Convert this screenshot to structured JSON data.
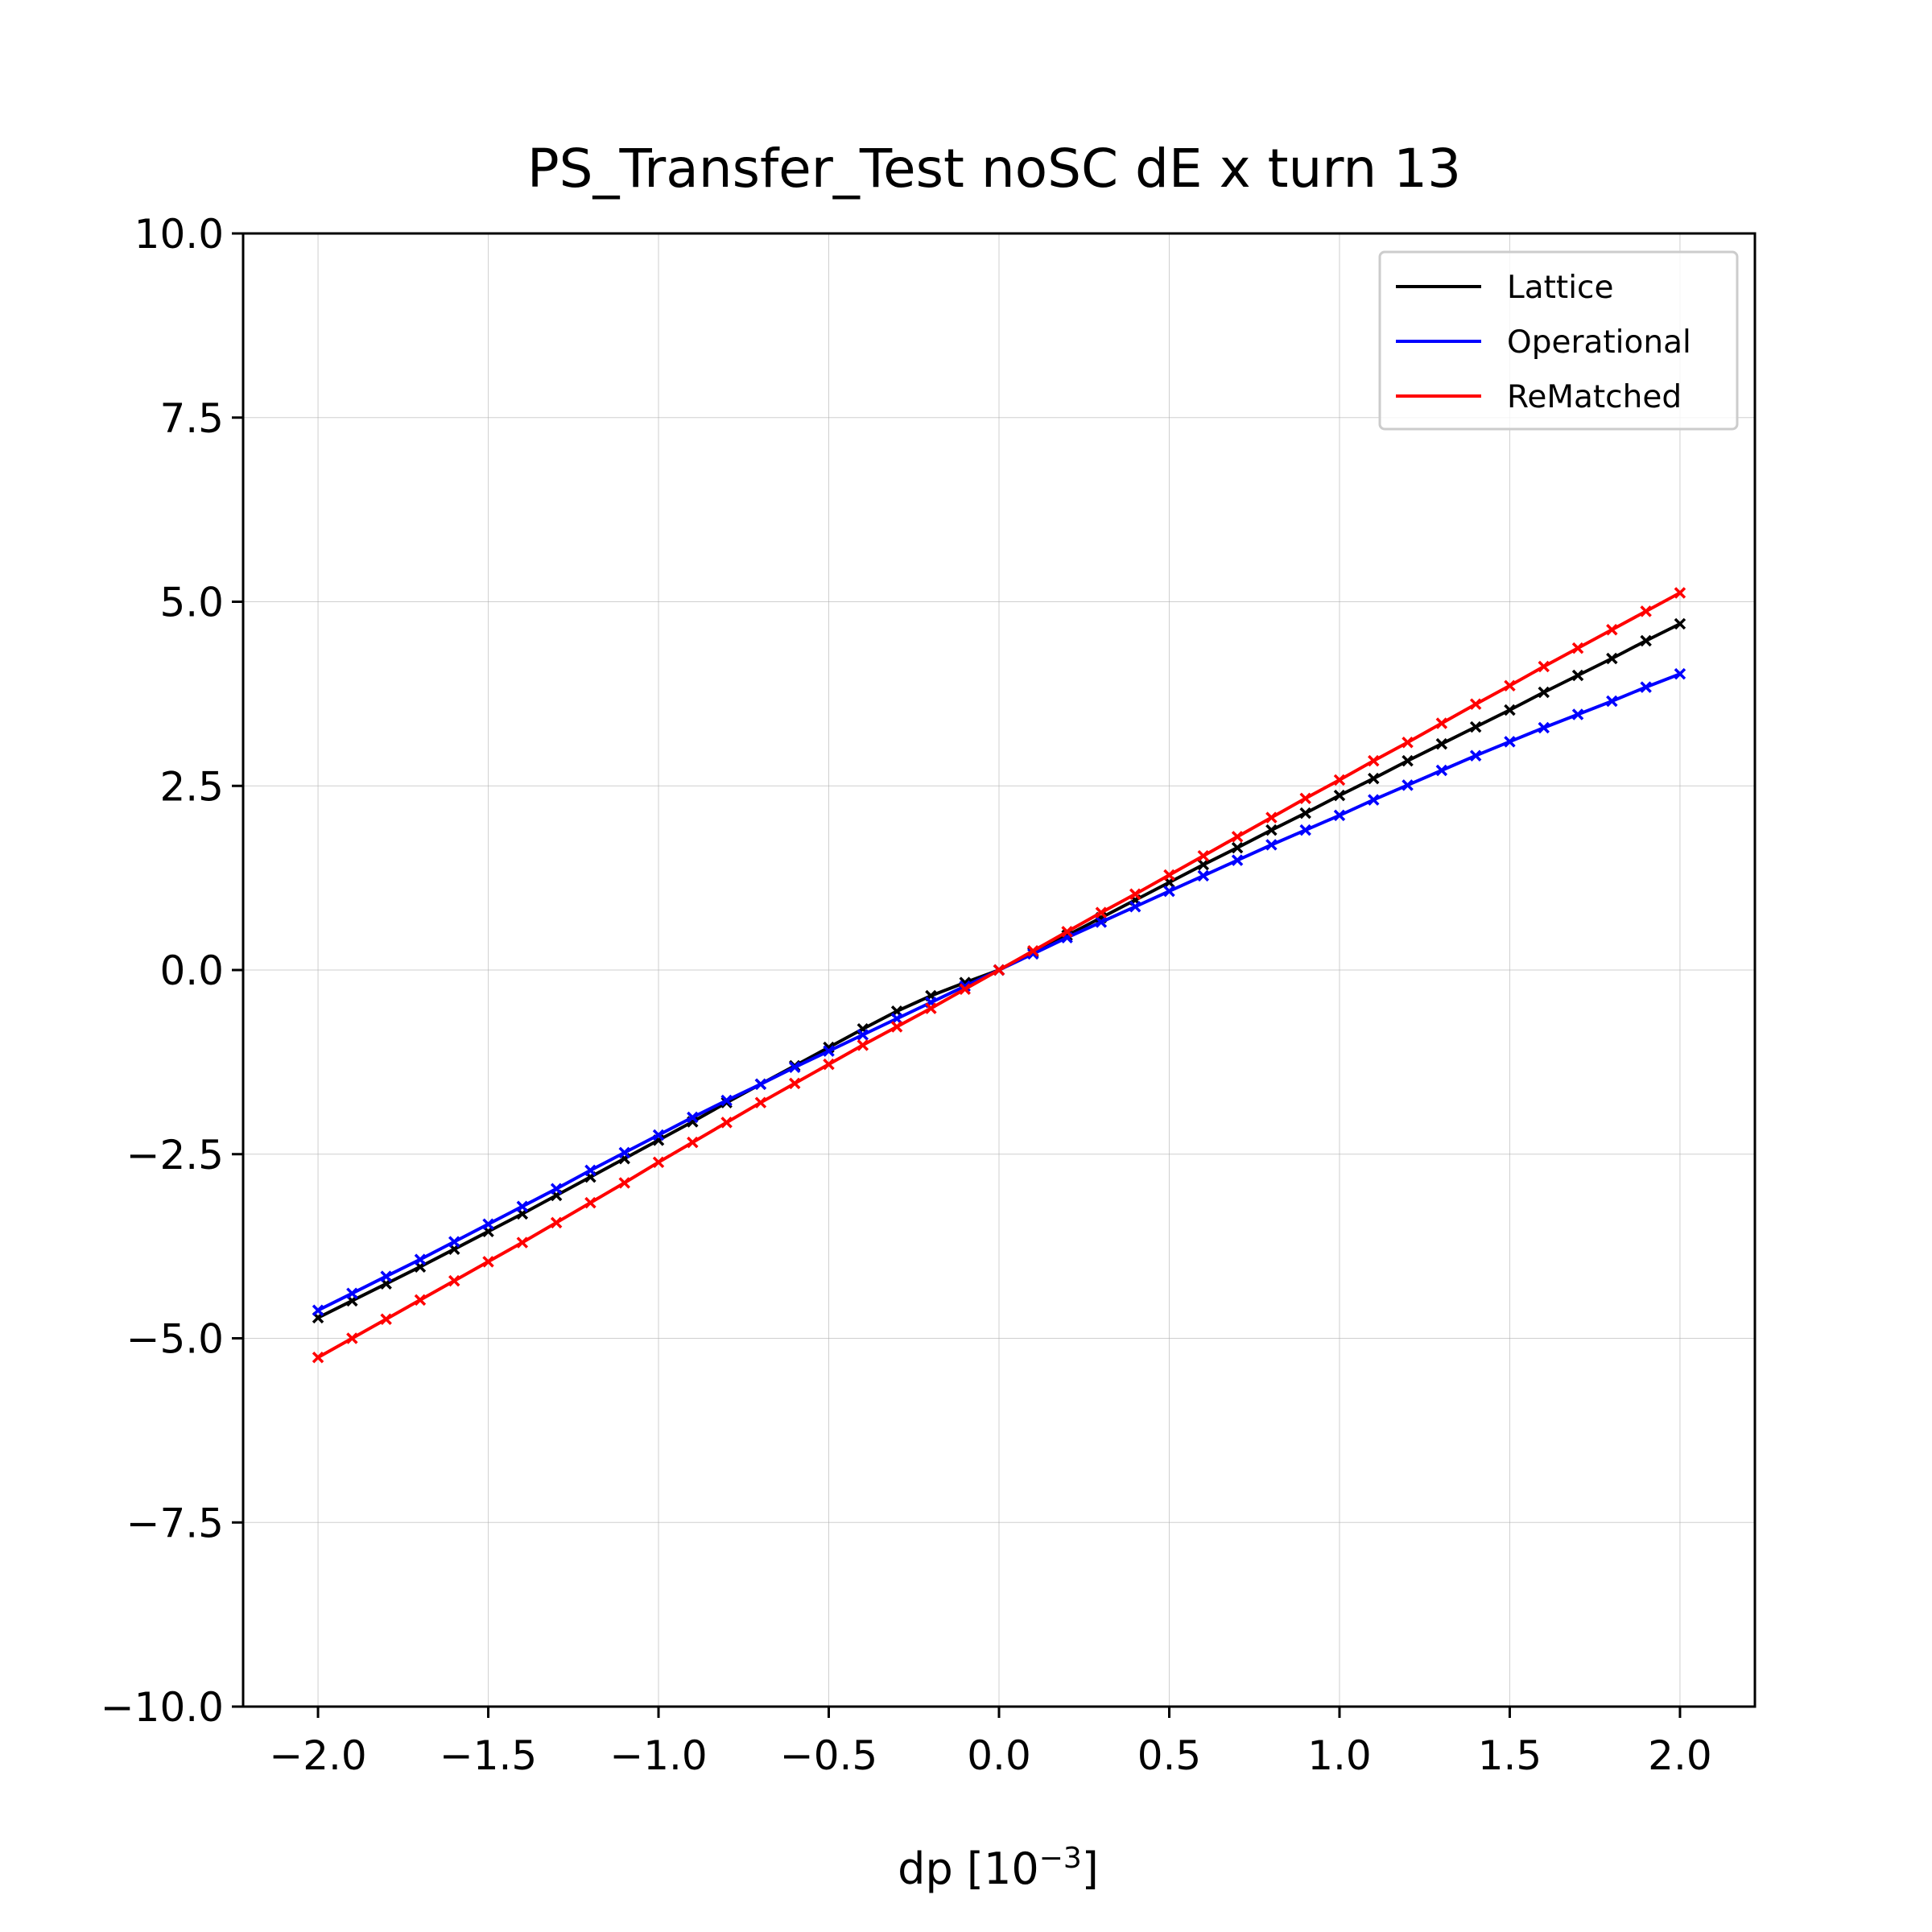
{
  "chart_data": {
    "type": "line",
    "title": "PS_Transfer_Test noSC dE x turn 13",
    "xlabel": "dp [10",
    "xlabel_exponent": "−3",
    "xlabel_suffix": "]",
    "ylabel": "",
    "xlim": [
      -2.22,
      2.22
    ],
    "ylim": [
      -10.0,
      10.0
    ],
    "xticks": [
      -2.0,
      -1.5,
      -1.0,
      -0.5,
      0.0,
      0.5,
      1.0,
      1.5,
      2.0
    ],
    "xtick_labels": [
      "−2.0",
      "−1.5",
      "−1.0",
      "−0.5",
      "0.0",
      "0.5",
      "1.0",
      "1.5",
      "2.0"
    ],
    "yticks": [
      -10.0,
      -7.5,
      -5.0,
      -2.5,
      0.0,
      2.5,
      5.0,
      7.5,
      10.0
    ],
    "ytick_labels": [
      "−10.0",
      "−7.5",
      "−5.0",
      "−2.5",
      "0.0",
      "2.5",
      "5.0",
      "7.5",
      "10.0"
    ],
    "grid": true,
    "legend_position": "top-right",
    "marker": "x",
    "x": [
      -2.0,
      -1.9,
      -1.8,
      -1.7,
      -1.6,
      -1.5,
      -1.4,
      -1.3,
      -1.2,
      -1.1,
      -1.0,
      -0.9,
      -0.8,
      -0.7,
      -0.6,
      -0.5,
      -0.4,
      -0.3,
      -0.2,
      -0.1,
      0.0,
      0.1,
      0.2,
      0.3,
      0.4,
      0.5,
      0.6,
      0.7,
      0.8,
      0.9,
      1.0,
      1.1,
      1.2,
      1.3,
      1.4,
      1.5,
      1.6,
      1.7,
      1.8,
      1.9,
      2.0
    ],
    "series": [
      {
        "name": "Lattice",
        "color": "#000000",
        "values": [
          -4.72,
          -4.49,
          -4.26,
          -4.03,
          -3.79,
          -3.55,
          -3.31,
          -3.06,
          -2.81,
          -2.56,
          -2.31,
          -2.06,
          -1.8,
          -1.55,
          -1.3,
          -1.05,
          -0.8,
          -0.56,
          -0.35,
          -0.17,
          0.0,
          0.24,
          0.47,
          0.71,
          0.95,
          1.19,
          1.43,
          1.66,
          1.9,
          2.13,
          2.37,
          2.6,
          2.84,
          3.07,
          3.3,
          3.53,
          3.77,
          4.0,
          4.23,
          4.47,
          4.7
        ]
      },
      {
        "name": "Operational",
        "color": "#0000ff",
        "values": [
          -4.62,
          -4.39,
          -4.16,
          -3.93,
          -3.69,
          -3.45,
          -3.21,
          -2.97,
          -2.72,
          -2.48,
          -2.24,
          -2.0,
          -1.77,
          -1.55,
          -1.32,
          -1.1,
          -0.88,
          -0.66,
          -0.44,
          -0.22,
          0.0,
          0.22,
          0.44,
          0.65,
          0.86,
          1.07,
          1.28,
          1.49,
          1.7,
          1.9,
          2.1,
          2.31,
          2.51,
          2.71,
          2.91,
          3.1,
          3.29,
          3.47,
          3.65,
          3.84,
          4.02
        ]
      },
      {
        "name": "ReMatched",
        "color": "#ff0000",
        "values": [
          -5.26,
          -5.0,
          -4.74,
          -4.48,
          -4.22,
          -3.96,
          -3.7,
          -3.43,
          -3.16,
          -2.89,
          -2.61,
          -2.34,
          -2.07,
          -1.8,
          -1.54,
          -1.28,
          -1.02,
          -0.77,
          -0.52,
          -0.26,
          0.0,
          0.26,
          0.52,
          0.78,
          1.03,
          1.29,
          1.55,
          1.81,
          2.07,
          2.33,
          2.58,
          2.84,
          3.09,
          3.35,
          3.61,
          3.86,
          4.12,
          4.37,
          4.62,
          4.87,
          5.12
        ]
      }
    ]
  }
}
